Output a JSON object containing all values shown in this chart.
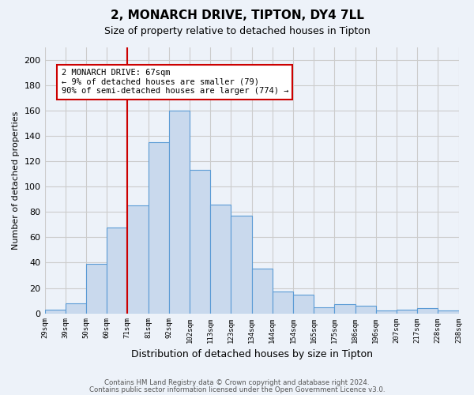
{
  "title_line1": "2, MONARCH DRIVE, TIPTON, DY4 7LL",
  "title_line2": "Size of property relative to detached houses in Tipton",
  "xlabel": "Distribution of detached houses by size in Tipton",
  "ylabel": "Number of detached properties",
  "footer_line1": "Contains HM Land Registry data © Crown copyright and database right 2024.",
  "footer_line2": "Contains public sector information licensed under the Open Government Licence v3.0.",
  "categories": [
    "29sqm",
    "39sqm",
    "50sqm",
    "60sqm",
    "71sqm",
    "81sqm",
    "92sqm",
    "102sqm",
    "113sqm",
    "123sqm",
    "134sqm",
    "144sqm",
    "154sqm",
    "165sqm",
    "175sqm",
    "186sqm",
    "196sqm",
    "207sqm",
    "217sqm",
    "228sqm",
    "238sqm"
  ],
  "values": [
    3,
    8,
    39,
    68,
    85,
    135,
    160,
    113,
    86,
    77,
    35,
    17,
    15,
    5,
    7,
    6,
    2,
    3,
    4,
    2
  ],
  "bar_color": "#c9d9ed",
  "bar_edge_color": "#5b9bd5",
  "annotation_text": "2 MONARCH DRIVE: 67sqm\n← 9% of detached houses are smaller (79)\n90% of semi-detached houses are larger (774) →",
  "annotation_box_color": "white",
  "annotation_border_color": "#cc0000",
  "vline_color": "#cc0000",
  "vline_x": 3.5,
  "ylim": [
    0,
    210
  ],
  "yticks": [
    0,
    20,
    40,
    60,
    80,
    100,
    120,
    140,
    160,
    180,
    200
  ],
  "grid_color": "#cccccc",
  "background_color": "#edf2f9"
}
